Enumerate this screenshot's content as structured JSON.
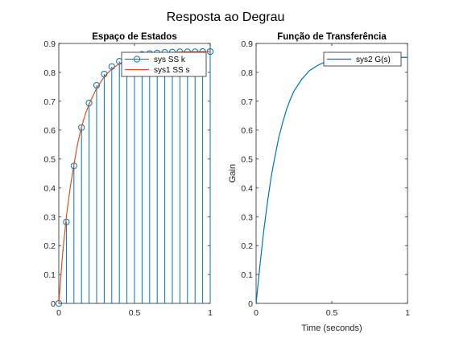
{
  "figure": {
    "title": "Resposta ao Degrau"
  },
  "colors": {
    "stem": "#0072BD",
    "continuous": "#D95319",
    "line2": "#0072BD",
    "axis": "#262626",
    "grid_box": "#ffffff"
  },
  "chart_data": [
    {
      "type": "stem+line",
      "title": "Espaço de Estados",
      "xlabel": "",
      "ylabel": "",
      "xlim": [
        0,
        1
      ],
      "ylim": [
        0,
        0.9
      ],
      "xticks": [
        "0",
        "0.5",
        "1"
      ],
      "yticks": [
        "0",
        "0.1",
        "0.2",
        "0.3",
        "0.4",
        "0.5",
        "0.6",
        "0.7",
        "0.8",
        "0.9"
      ],
      "legend": {
        "location": "top-right",
        "entries": [
          "sys SS k",
          "sys1 SS s"
        ]
      },
      "series": [
        {
          "name": "sys SS k",
          "style": "stem",
          "x": [
            0,
            0.05,
            0.1,
            0.15,
            0.2,
            0.25,
            0.3,
            0.35,
            0.4,
            0.45,
            0.5,
            0.55,
            0.6,
            0.65,
            0.7,
            0.75,
            0.8,
            0.85,
            0.9,
            0.95,
            1.0
          ],
          "values": [
            0,
            0.282,
            0.476,
            0.609,
            0.694,
            0.755,
            0.794,
            0.82,
            0.838,
            0.849,
            0.857,
            0.862,
            0.865,
            0.867,
            0.869,
            0.87,
            0.871,
            0.871,
            0.871,
            0.872,
            0.872
          ]
        },
        {
          "name": "sys1 SS s",
          "style": "line",
          "x": [
            0,
            0.025,
            0.05,
            0.075,
            0.1,
            0.125,
            0.15,
            0.175,
            0.2,
            0.25,
            0.3,
            0.35,
            0.4,
            0.45,
            0.5,
            0.6,
            0.7,
            0.8,
            0.9,
            1.0
          ],
          "values": [
            0,
            0.17,
            0.3,
            0.4,
            0.48,
            0.555,
            0.61,
            0.655,
            0.69,
            0.745,
            0.785,
            0.812,
            0.83,
            0.843,
            0.852,
            0.862,
            0.867,
            0.87,
            0.871,
            0.872
          ]
        }
      ]
    },
    {
      "type": "line",
      "title": "Função de Transferência",
      "xlabel": "Time (seconds)",
      "ylabel": "Gain",
      "xlim": [
        0,
        1
      ],
      "ylim": [
        0,
        0.9
      ],
      "xticks": [
        "0",
        "0.5",
        "1"
      ],
      "yticks": [
        "0",
        "0.1",
        "0.2",
        "0.3",
        "0.4",
        "0.5",
        "0.6",
        "0.7",
        "0.8",
        "0.9"
      ],
      "legend": {
        "location": "top-right",
        "entries": [
          "sys2 G(s)"
        ]
      },
      "series": [
        {
          "name": "sys2 G(s)",
          "x": [
            0,
            0.025,
            0.05,
            0.075,
            0.1,
            0.125,
            0.15,
            0.175,
            0.2,
            0.225,
            0.25,
            0.3,
            0.35,
            0.4,
            0.45,
            0.5,
            0.6,
            0.7,
            0.8,
            0.9,
            1.0
          ],
          "values": [
            0,
            0.13,
            0.25,
            0.35,
            0.44,
            0.51,
            0.575,
            0.625,
            0.67,
            0.705,
            0.735,
            0.775,
            0.805,
            0.822,
            0.835,
            0.842,
            0.848,
            0.851,
            0.852,
            0.852,
            0.852
          ]
        }
      ]
    }
  ]
}
